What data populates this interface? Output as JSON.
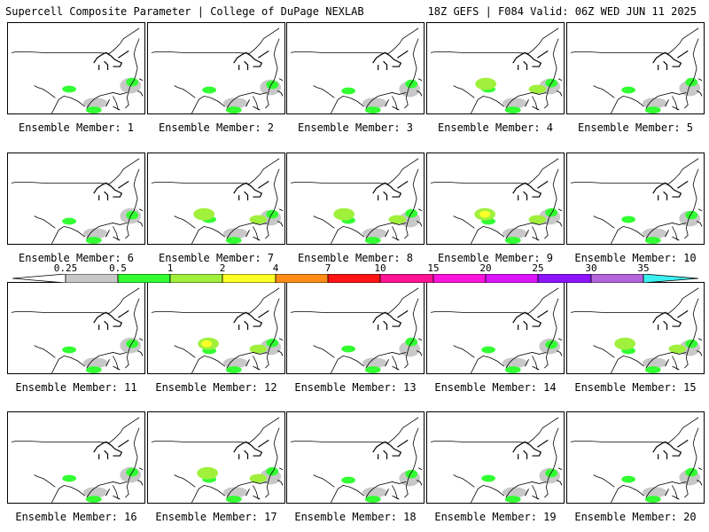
{
  "header": {
    "title": "Supercell Composite Parameter | College of DuPage NEXLAB",
    "run_info": "18Z GEFS | F084 Valid: 06Z WED JUN 11 2025"
  },
  "panels": [
    {
      "label": "Ensemble Member: 1",
      "intensity": 1
    },
    {
      "label": "Ensemble Member: 2",
      "intensity": 1
    },
    {
      "label": "Ensemble Member: 3",
      "intensity": 1
    },
    {
      "label": "Ensemble Member: 4",
      "intensity": 2
    },
    {
      "label": "Ensemble Member: 5",
      "intensity": 1
    },
    {
      "label": "Ensemble Member: 6",
      "intensity": 1
    },
    {
      "label": "Ensemble Member: 7",
      "intensity": 2
    },
    {
      "label": "Ensemble Member: 8",
      "intensity": 2
    },
    {
      "label": "Ensemble Member: 9",
      "intensity": 3
    },
    {
      "label": "Ensemble Member: 10",
      "intensity": 1
    },
    {
      "label": "Ensemble Member: 11",
      "intensity": 1
    },
    {
      "label": "Ensemble Member: 12",
      "intensity": 3
    },
    {
      "label": "Ensemble Member: 13",
      "intensity": 1
    },
    {
      "label": "Ensemble Member: 14",
      "intensity": 1
    },
    {
      "label": "Ensemble Member: 15",
      "intensity": 2
    },
    {
      "label": "Ensemble Member: 16",
      "intensity": 1
    },
    {
      "label": "Ensemble Member: 17",
      "intensity": 2
    },
    {
      "label": "Ensemble Member: 18",
      "intensity": 1
    },
    {
      "label": "Ensemble Member: 19",
      "intensity": 1
    },
    {
      "label": "Ensemble Member: 20",
      "intensity": 1
    }
  ],
  "colorbar": {
    "ticks": [
      "0.25",
      "0.5",
      "1",
      "2",
      "4",
      "7",
      "10",
      "15",
      "20",
      "25",
      "30",
      "35"
    ],
    "colors": [
      "#ffffff",
      "#c8c8c8",
      "#32ff32",
      "#a0f03c",
      "#ffff28",
      "#ff8c14",
      "#ff1414",
      "#ff1496",
      "#ff14dc",
      "#dc14ff",
      "#8c14ff",
      "#b464dc",
      "#3cf0f0"
    ]
  },
  "colors": {
    "border": "#000000",
    "shade_gray": "#c8c8c8",
    "shade_green": "#32ff32",
    "shade_lime": "#a0f03c",
    "shade_yellow": "#ffff28"
  }
}
